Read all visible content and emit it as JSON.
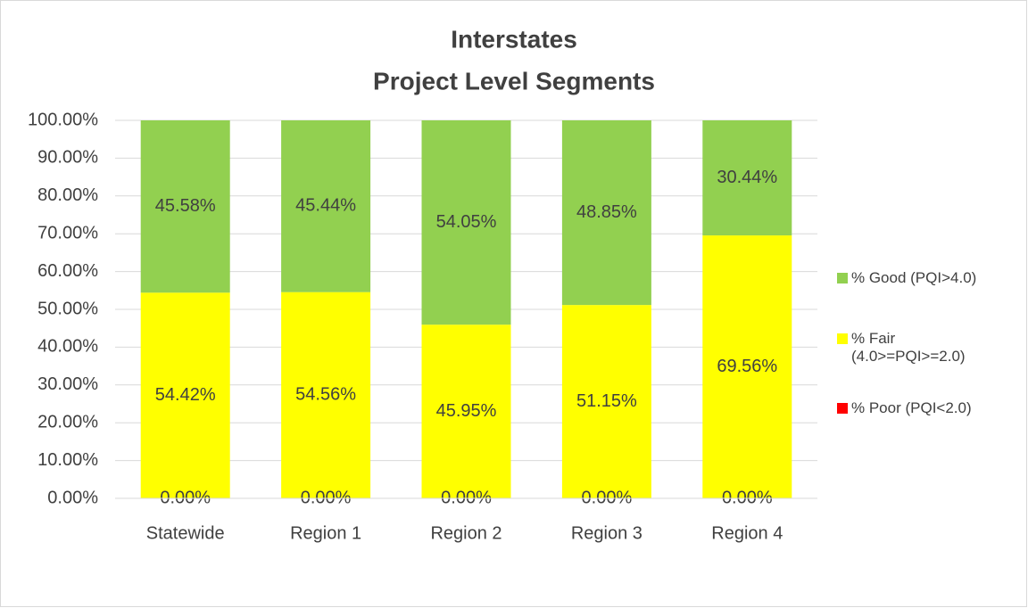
{
  "chart_data": {
    "type": "stacked_bar",
    "title": [
      "Interstates",
      "Project Level Segments"
    ],
    "categories": [
      "Statewide",
      "Region 1",
      "Region 2",
      "Region 3",
      "Region 4"
    ],
    "series": [
      {
        "name": "% Good (PQI>4.0)",
        "color": "#92d050",
        "values": [
          45.58,
          45.44,
          54.05,
          48.85,
          30.44
        ],
        "value_labels": [
          "45.58%",
          "45.44%",
          "54.05%",
          "48.85%",
          "30.44%"
        ]
      },
      {
        "name": "% Fair (4.0>=PQI>=2.0)",
        "color": "#ffff00",
        "values": [
          54.42,
          54.56,
          45.95,
          51.15,
          69.56
        ],
        "value_labels": [
          "54.42%",
          "54.56%",
          "45.95%",
          "51.15%",
          "69.56%"
        ]
      },
      {
        "name": "% Poor (PQI<2.0)",
        "color": "#ff0000",
        "values": [
          0,
          0,
          0,
          0,
          0
        ],
        "value_labels": [
          "0.00%",
          "0.00%",
          "0.00%",
          "0.00%",
          "0.00%"
        ]
      }
    ],
    "ylim": [
      0,
      100
    ],
    "yticks": [
      {
        "value": 0,
        "label": "0.00%"
      },
      {
        "value": 10,
        "label": "10.00%"
      },
      {
        "value": 20,
        "label": "20.00%"
      },
      {
        "value": 30,
        "label": "30.00%"
      },
      {
        "value": 40,
        "label": "40.00%"
      },
      {
        "value": 50,
        "label": "50.00%"
      },
      {
        "value": 60,
        "label": "60.00%"
      },
      {
        "value": 70,
        "label": "70.00%"
      },
      {
        "value": 80,
        "label": "80.00%"
      },
      {
        "value": 90,
        "label": "90.00%"
      },
      {
        "value": 100,
        "label": "100.00%"
      }
    ],
    "grid": true,
    "legend": "right"
  }
}
